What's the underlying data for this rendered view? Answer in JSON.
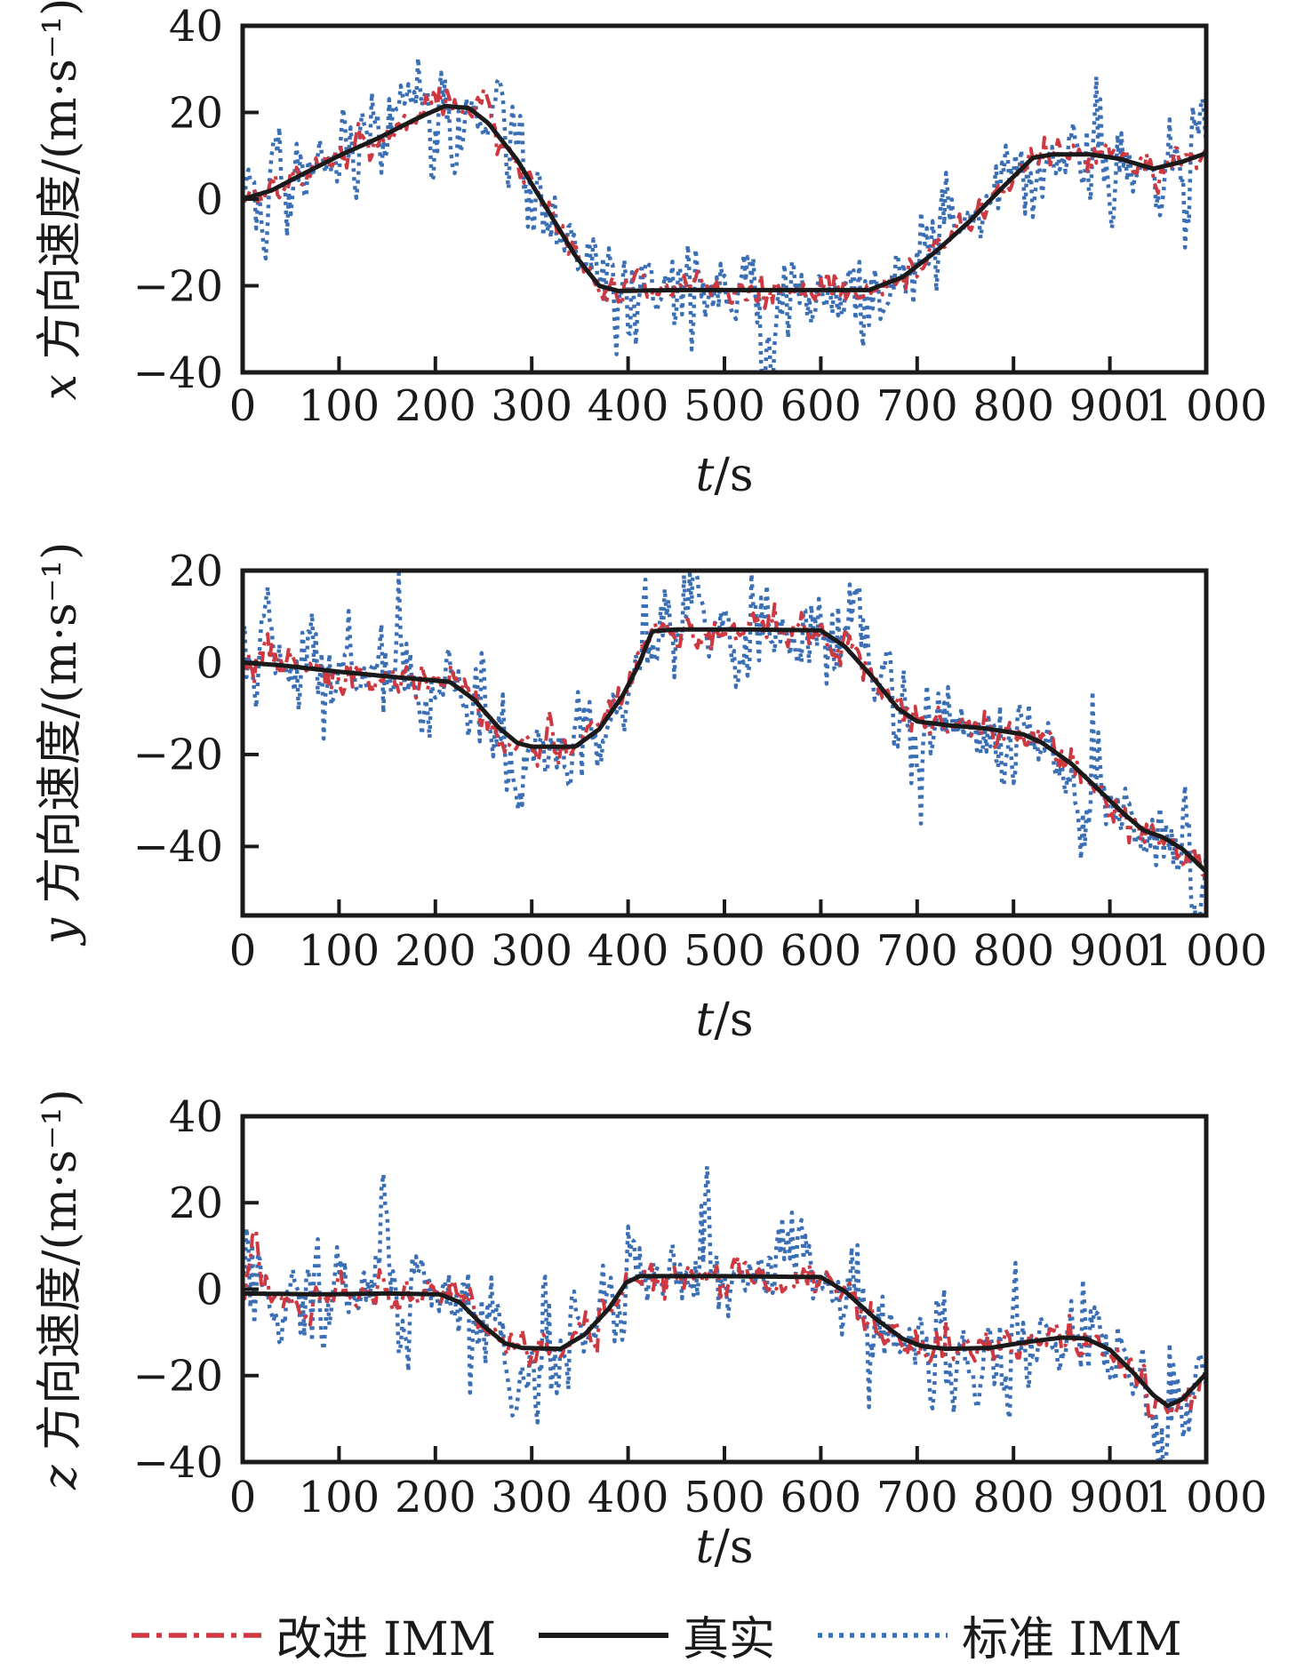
{
  "figure_title": "",
  "colors": {
    "true_line": "#1a1a1a",
    "improved_imm": "#ce3840",
    "standard_imm": "#3b6fb5",
    "axis": "#1a1a1a"
  },
  "legend": {
    "position": "bottom-center",
    "items": [
      {
        "key": "improved",
        "label": "改进 IMM",
        "style": "dashdot",
        "color": "#ce3840"
      },
      {
        "key": "true",
        "label": "真实",
        "style": "solid",
        "color": "#1a1a1a"
      },
      {
        "key": "standard",
        "label": "标准 IMM",
        "style": "dotted",
        "color": "#3b6fb5"
      }
    ]
  },
  "chart_data": [
    {
      "type": "line",
      "title": "",
      "ylabel_letter": "x",
      "ylabel_rest": " 方向速度/(m·s⁻¹)",
      "xlabel_letter": "t",
      "xlabel_rest": "/s",
      "xlim": [
        0,
        1000
      ],
      "ylim": [
        -40,
        40
      ],
      "grid": false,
      "xticks": [
        0,
        100,
        200,
        300,
        400,
        500,
        600,
        700,
        800,
        900,
        1000
      ],
      "xtick_labels": [
        "0",
        "100",
        "200",
        "300",
        "400",
        "500",
        "600",
        "700",
        "800",
        "900",
        "1 000"
      ],
      "yticks": [
        40,
        20,
        0,
        -20,
        -40
      ],
      "ytick_labels": [
        "40",
        "20",
        "0",
        "−20",
        "−40"
      ],
      "sample_step": 2,
      "true_keypoints": [
        [
          0,
          0
        ],
        [
          30,
          2
        ],
        [
          60,
          5.5
        ],
        [
          100,
          10
        ],
        [
          140,
          14
        ],
        [
          180,
          18.5
        ],
        [
          210,
          21.5
        ],
        [
          235,
          21
        ],
        [
          255,
          17.5
        ],
        [
          285,
          9
        ],
        [
          315,
          -2
        ],
        [
          345,
          -13
        ],
        [
          370,
          -20
        ],
        [
          390,
          -21.2
        ],
        [
          450,
          -21
        ],
        [
          550,
          -21
        ],
        [
          650,
          -21
        ],
        [
          685,
          -18
        ],
        [
          720,
          -12
        ],
        [
          755,
          -5
        ],
        [
          790,
          3
        ],
        [
          820,
          9.5
        ],
        [
          840,
          10.3
        ],
        [
          880,
          10.3
        ],
        [
          910,
          9.3
        ],
        [
          945,
          7
        ],
        [
          975,
          8.6
        ],
        [
          1000,
          10.6
        ]
      ],
      "series": [
        {
          "name": "标准 IMM",
          "role": "standard",
          "sigma": 4.8,
          "ar_rho": 0.35,
          "wobble_amp": 2.5,
          "wobble_period": 26,
          "env_amp": 0.5,
          "env_period": 85,
          "seed": 101,
          "spikes": [
            [
              170,
              12,
              6
            ],
            [
              265,
              10,
              5
            ],
            [
              545,
              -15,
              6
            ],
            [
              730,
              9,
              5
            ],
            [
              995,
              8,
              4
            ]
          ]
        },
        {
          "name": "改进 IMM",
          "role": "improved",
          "sigma": 1.6,
          "ar_rho": 0.45,
          "wobble_amp": 0.9,
          "wobble_period": 22,
          "env_amp": 0.4,
          "env_period": 70,
          "seed": 102,
          "spikes": [
            [
              250,
              3,
              6
            ]
          ]
        },
        {
          "name": "真实",
          "role": "true"
        }
      ]
    },
    {
      "type": "line",
      "title": "",
      "ylabel_letter": "y",
      "ylabel_rest": " 方向速度/(m·s⁻¹)",
      "xlabel_letter": "t",
      "xlabel_rest": "/s",
      "xlim": [
        0,
        1000
      ],
      "ylim": [
        -55,
        20
      ],
      "grid": false,
      "xticks": [
        0,
        100,
        200,
        300,
        400,
        500,
        600,
        700,
        800,
        900,
        1000
      ],
      "xtick_labels": [
        "0",
        "100",
        "200",
        "300",
        "400",
        "500",
        "600",
        "700",
        "800",
        "900",
        "1 000"
      ],
      "yticks": [
        20,
        0,
        -20,
        -40
      ],
      "ytick_labels": [
        "20",
        "0",
        "−20",
        "−40"
      ],
      "sample_step": 2,
      "true_keypoints": [
        [
          0,
          0
        ],
        [
          40,
          -0.6
        ],
        [
          100,
          -2
        ],
        [
          160,
          -3.2
        ],
        [
          215,
          -4.2
        ],
        [
          240,
          -8
        ],
        [
          265,
          -14
        ],
        [
          285,
          -17.5
        ],
        [
          300,
          -18.3
        ],
        [
          345,
          -18.3
        ],
        [
          370,
          -14.5
        ],
        [
          395,
          -7
        ],
        [
          412,
          0
        ],
        [
          425,
          6.8
        ],
        [
          450,
          7.2
        ],
        [
          520,
          7.2
        ],
        [
          600,
          7
        ],
        [
          625,
          3.5
        ],
        [
          655,
          -3.5
        ],
        [
          680,
          -10
        ],
        [
          700,
          -12.8
        ],
        [
          730,
          -13.6
        ],
        [
          770,
          -14.3
        ],
        [
          810,
          -15.6
        ],
        [
          830,
          -17.5
        ],
        [
          860,
          -22
        ],
        [
          890,
          -28
        ],
        [
          915,
          -33
        ],
        [
          935,
          -36.5
        ],
        [
          955,
          -38
        ],
        [
          975,
          -40.5
        ],
        [
          1000,
          -45.5
        ]
      ],
      "series": [
        {
          "name": "标准 IMM",
          "role": "standard",
          "sigma": 5.0,
          "ar_rho": 0.35,
          "wobble_amp": 2.5,
          "wobble_period": 28,
          "env_amp": 0.5,
          "env_period": 90,
          "seed": 201,
          "spikes": [
            [
              25,
              12,
              5
            ],
            [
              190,
              -10,
              6
            ],
            [
              280,
              -13,
              6
            ],
            [
              470,
              12,
              6
            ],
            [
              640,
              11,
              6
            ],
            [
              870,
              -9,
              6
            ],
            [
              990,
              -5,
              5
            ]
          ]
        },
        {
          "name": "改进 IMM",
          "role": "improved",
          "sigma": 1.7,
          "ar_rho": 0.45,
          "wobble_amp": 1.0,
          "wobble_period": 24,
          "env_amp": 0.4,
          "env_period": 75,
          "seed": 202,
          "spikes": [
            [
              25,
              4,
              4
            ],
            [
              265,
              -4,
              6
            ]
          ]
        },
        {
          "name": "真实",
          "role": "true"
        }
      ]
    },
    {
      "type": "line",
      "title": "",
      "ylabel_letter": "z",
      "ylabel_rest": " 方向速度/(m·s⁻¹)",
      "xlabel_letter": "t",
      "xlabel_rest": "/s",
      "xlim": [
        0,
        1000
      ],
      "ylim": [
        -40,
        40
      ],
      "grid": false,
      "xticks": [
        0,
        100,
        200,
        300,
        400,
        500,
        600,
        700,
        800,
        900,
        1000
      ],
      "xtick_labels": [
        "0",
        "100",
        "200",
        "300",
        "400",
        "500",
        "600",
        "700",
        "800",
        "900",
        "1 000"
      ],
      "yticks": [
        40,
        20,
        0,
        -20,
        -40
      ],
      "ytick_labels": [
        "40",
        "20",
        "0",
        "−20",
        "−40"
      ],
      "sample_step": 2,
      "true_keypoints": [
        [
          0,
          -1
        ],
        [
          80,
          -1.2
        ],
        [
          150,
          -1
        ],
        [
          205,
          -1.2
        ],
        [
          225,
          -3
        ],
        [
          250,
          -8.5
        ],
        [
          272,
          -12.5
        ],
        [
          290,
          -13.6
        ],
        [
          330,
          -13.8
        ],
        [
          355,
          -10.5
        ],
        [
          380,
          -4.5
        ],
        [
          398,
          1.5
        ],
        [
          412,
          3
        ],
        [
          500,
          3
        ],
        [
          600,
          2.8
        ],
        [
          625,
          -0.5
        ],
        [
          655,
          -6.5
        ],
        [
          685,
          -11.5
        ],
        [
          705,
          -13.2
        ],
        [
          730,
          -13.8
        ],
        [
          775,
          -13.6
        ],
        [
          815,
          -12.2
        ],
        [
          850,
          -11.2
        ],
        [
          875,
          -11.4
        ],
        [
          900,
          -14
        ],
        [
          925,
          -19.5
        ],
        [
          945,
          -24.5
        ],
        [
          960,
          -27
        ],
        [
          975,
          -25.5
        ],
        [
          1000,
          -19.5
        ]
      ],
      "series": [
        {
          "name": "标准 IMM",
          "role": "standard",
          "sigma": 5.2,
          "ar_rho": 0.35,
          "wobble_amp": 2.6,
          "wobble_period": 27,
          "env_amp": 0.55,
          "env_period": 80,
          "seed": 301,
          "spikes": [
            [
              40,
              -8,
              5
            ],
            [
              145,
              24,
              5
            ],
            [
              285,
              -14,
              6
            ],
            [
              480,
              13,
              5
            ],
            [
              575,
              13,
              6
            ],
            [
              760,
              -9,
              6
            ],
            [
              950,
              -11,
              6
            ]
          ]
        },
        {
          "name": "改进 IMM",
          "role": "improved",
          "sigma": 1.8,
          "ar_rho": 0.45,
          "wobble_amp": 1.0,
          "wobble_period": 23,
          "env_amp": 0.45,
          "env_period": 70,
          "seed": 302,
          "spikes": [
            [
              12,
              14,
              4
            ],
            [
              60,
              -5,
              5
            ]
          ]
        },
        {
          "name": "真实",
          "role": "true"
        }
      ]
    }
  ]
}
